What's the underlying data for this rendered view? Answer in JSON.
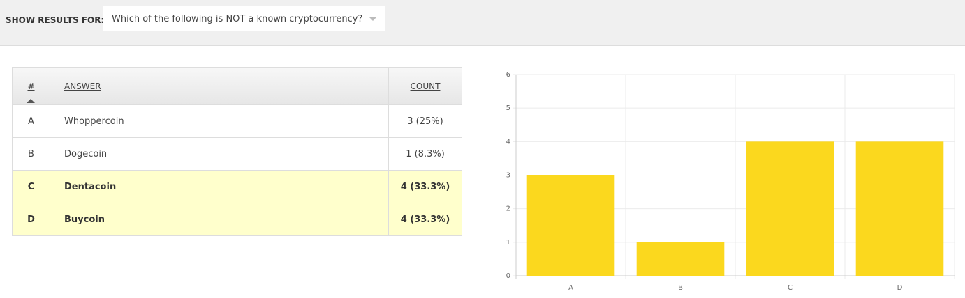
{
  "filter": {
    "label": "SHOW RESULTS FOR:",
    "selected": "Which of the following is NOT a known cryptocurrency?"
  },
  "table": {
    "columns": [
      "#",
      "ANSWER",
      "COUNT"
    ],
    "rows": [
      [
        "A",
        "Whoppercoin",
        "3 (25%)"
      ],
      [
        "B",
        "Dogecoin",
        "1 (8.3%)"
      ],
      [
        "C",
        "Dentacoin",
        "4 (33.3%)"
      ],
      [
        "D",
        "Buycoin",
        "4 (33.3%)"
      ]
    ],
    "highlighted": [
      false,
      false,
      true,
      true
    ]
  },
  "chart_data": {
    "type": "bar",
    "categories": [
      "A",
      "B",
      "C",
      "D"
    ],
    "values": [
      3,
      1,
      4,
      4
    ],
    "color": "#fbd81e",
    "ylim": [
      0,
      6
    ],
    "yticks": [
      0,
      1,
      2,
      3,
      4,
      5,
      6
    ],
    "grid": true
  }
}
